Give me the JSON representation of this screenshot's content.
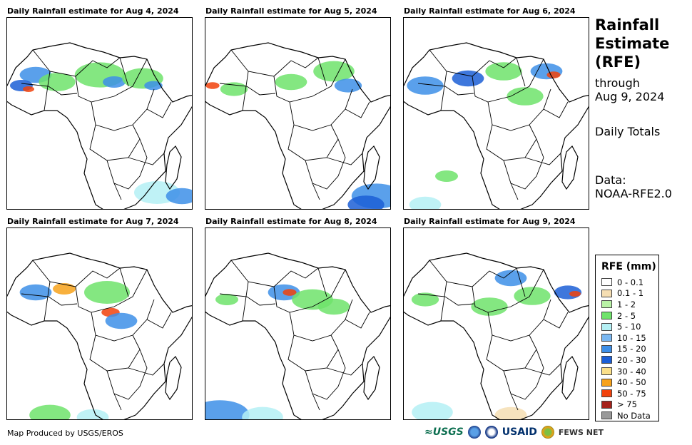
{
  "panels": [
    {
      "title": "Daily Rainfall estimate for Aug 4, 2024"
    },
    {
      "title": "Daily Rainfall estimate for Aug 5, 2024"
    },
    {
      "title": "Daily Rainfall estimate for Aug 6, 2024"
    },
    {
      "title": "Daily Rainfall estimate for Aug 7, 2024"
    },
    {
      "title": "Daily Rainfall estimate for Aug 8, 2024"
    },
    {
      "title": "Daily Rainfall estimate for Aug 9, 2024"
    }
  ],
  "sidebar": {
    "title_line1": "Rainfall",
    "title_line2": "Estimate",
    "title_line3": "(RFE)",
    "through_label": "through",
    "through_date": "Aug 9, 2024",
    "totals": "Daily Totals",
    "data_label": "Data:",
    "data_source": "NOAA-RFE2.0"
  },
  "legend": {
    "title": "RFE (mm)",
    "items": [
      {
        "label": "0 - 0.1",
        "color": "#ffffff"
      },
      {
        "label": "0.1 - 1",
        "color": "#f5deb3"
      },
      {
        "label": "1 - 2",
        "color": "#b9f2a6"
      },
      {
        "label": "2 - 5",
        "color": "#6fe36b"
      },
      {
        "label": "5 - 10",
        "color": "#b4f0f4"
      },
      {
        "label": "10 - 15",
        "color": "#7ab8f2"
      },
      {
        "label": "15 - 20",
        "color": "#3d8fe8"
      },
      {
        "label": "20 - 30",
        "color": "#1c5fd6"
      },
      {
        "label": "30 - 40",
        "color": "#fbe08a"
      },
      {
        "label": "40 - 50",
        "color": "#f7a21b"
      },
      {
        "label": "50 - 75",
        "color": "#f1420c"
      },
      {
        "label": "> 75",
        "color": "#a5221b"
      },
      {
        "label": "No Data",
        "color": "#999999"
      }
    ]
  },
  "footer": {
    "credit": "Map Produced by USGS/EROS"
  },
  "logos": {
    "usgs": "≈USGS",
    "usaid": "USAID",
    "fews": "FEWS NET"
  }
}
